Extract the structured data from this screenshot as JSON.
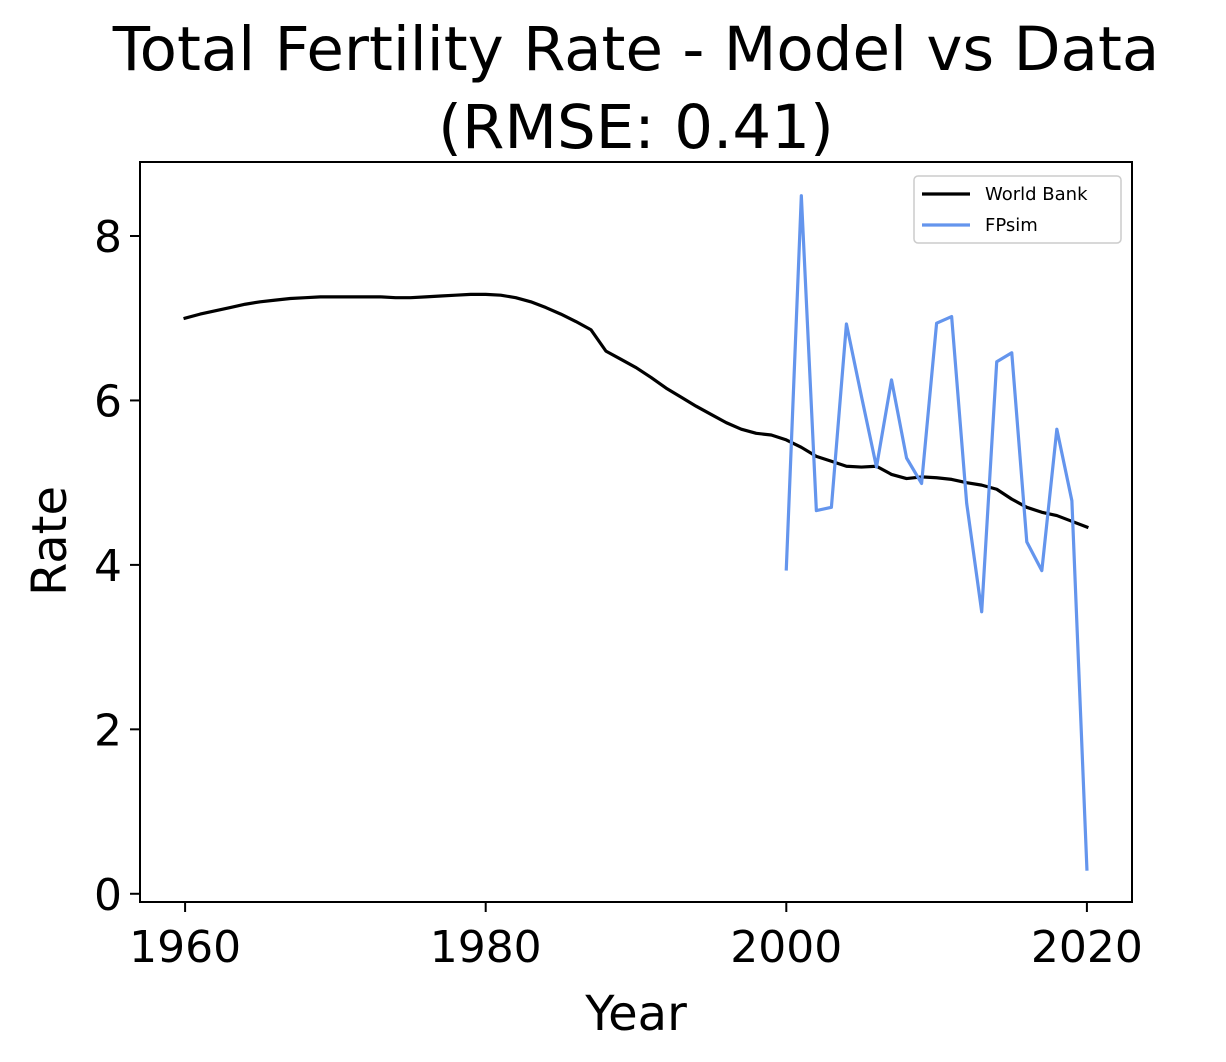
{
  "chart_data": {
    "type": "line",
    "title": "Total Fertility Rate - Model vs Data",
    "subtitle": "(RMSE: 0.41)",
    "xlabel": "Year",
    "ylabel": "Rate",
    "xlim": [
      1957,
      2023
    ],
    "ylim": [
      -0.1,
      8.9
    ],
    "xticks": [
      1960,
      1980,
      2000,
      2020
    ],
    "yticks": [
      0,
      2,
      4,
      6,
      8
    ],
    "grid": false,
    "legend_position": "top-right",
    "series": [
      {
        "name": "World Bank",
        "color": "#000000",
        "x": [
          1960,
          1961,
          1962,
          1963,
          1964,
          1965,
          1966,
          1967,
          1968,
          1969,
          1970,
          1971,
          1972,
          1973,
          1974,
          1975,
          1976,
          1977,
          1978,
          1979,
          1980,
          1981,
          1982,
          1983,
          1984,
          1985,
          1986,
          1987,
          1988,
          1989,
          1990,
          1991,
          1992,
          1993,
          1994,
          1995,
          1996,
          1997,
          1998,
          1999,
          2000,
          2001,
          2002,
          2003,
          2004,
          2005,
          2006,
          2007,
          2008,
          2009,
          2010,
          2011,
          2012,
          2013,
          2014,
          2015,
          2016,
          2017,
          2018,
          2019,
          2020
        ],
        "values": [
          7.0,
          7.05,
          7.09,
          7.13,
          7.17,
          7.2,
          7.22,
          7.24,
          7.25,
          7.26,
          7.26,
          7.26,
          7.26,
          7.26,
          7.25,
          7.25,
          7.26,
          7.27,
          7.28,
          7.29,
          7.29,
          7.28,
          7.25,
          7.2,
          7.13,
          7.05,
          6.96,
          6.86,
          6.6,
          6.5,
          6.4,
          6.28,
          6.15,
          6.04,
          5.93,
          5.83,
          5.73,
          5.65,
          5.6,
          5.58,
          5.52,
          5.43,
          5.32,
          5.26,
          5.2,
          5.19,
          5.2,
          5.1,
          5.05,
          5.07,
          5.06,
          5.04,
          5.0,
          4.97,
          4.92,
          4.8,
          4.7,
          4.64,
          4.6,
          4.53,
          4.46
        ]
      },
      {
        "name": "FPsim",
        "color": "#6495ed",
        "x": [
          2000,
          2001,
          2002,
          2003,
          2004,
          2005,
          2006,
          2007,
          2008,
          2009,
          2010,
          2011,
          2012,
          2013,
          2014,
          2015,
          2016,
          2017,
          2018,
          2019,
          2020
        ],
        "values": [
          3.95,
          8.49,
          4.66,
          4.7,
          6.93,
          6.05,
          5.19,
          6.25,
          5.3,
          4.99,
          6.94,
          7.02,
          4.75,
          3.43,
          6.47,
          6.58,
          4.28,
          3.93,
          5.65,
          4.78,
          0.3
        ]
      }
    ]
  }
}
